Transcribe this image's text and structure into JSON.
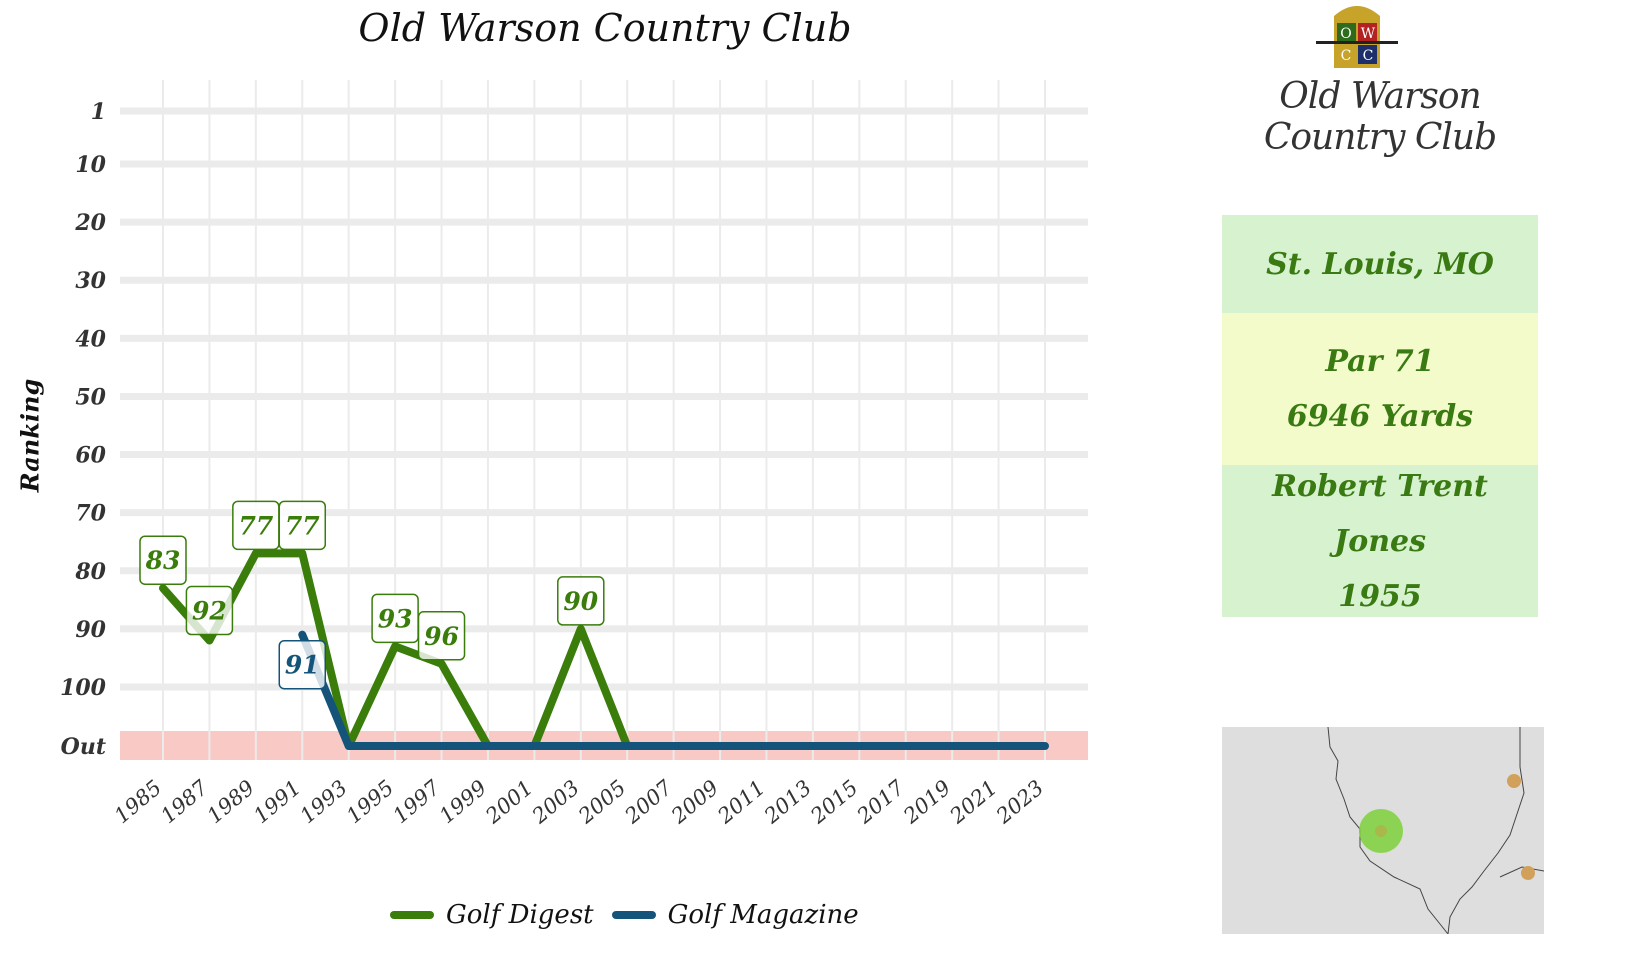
{
  "title": "Old Warson Country Club",
  "logo": {
    "crest_letters": [
      "O",
      "W",
      "C",
      "C"
    ],
    "wordmark": "Old Warson Country Club"
  },
  "info": {
    "location": "St. Louis, MO",
    "par": "Par 71",
    "yards": "6946 Yards",
    "architect": "Robert Trent Jones",
    "year": "1955"
  },
  "chart_data": {
    "type": "line",
    "title": "Old Warson Country Club",
    "xlabel": "",
    "ylabel": "Ranking",
    "y_ticks": [
      "1",
      "10",
      "20",
      "30",
      "40",
      "50",
      "60",
      "70",
      "80",
      "90",
      "100",
      "Out"
    ],
    "x_ticks": [
      1985,
      1987,
      1989,
      1991,
      1993,
      1995,
      1997,
      1999,
      2001,
      2003,
      2005,
      2007,
      2009,
      2011,
      2013,
      2015,
      2017,
      2019,
      2021,
      2023
    ],
    "out_value": 120,
    "out_band_color": "#f9c9c6",
    "grid": true,
    "legend": "bottom",
    "series": [
      {
        "name": "Golf Digest",
        "color": "#3a7d0b",
        "points": [
          {
            "x": 1985,
            "y": 83,
            "label": "83"
          },
          {
            "x": 1987,
            "y": 92,
            "label": "92"
          },
          {
            "x": 1989,
            "y": 77,
            "label": "77"
          },
          {
            "x": 1991,
            "y": 77,
            "label": "77"
          },
          {
            "x": 1993,
            "y": 120
          },
          {
            "x": 1995,
            "y": 93,
            "label": "93"
          },
          {
            "x": 1997,
            "y": 96,
            "label": "96"
          },
          {
            "x": 1999,
            "y": 120
          },
          {
            "x": 2001,
            "y": 120
          },
          {
            "x": 2003,
            "y": 90,
            "label": "90"
          },
          {
            "x": 2005,
            "y": 120
          }
        ]
      },
      {
        "name": "Golf Magazine",
        "color": "#15547a",
        "points": [
          {
            "x": 1991,
            "y": 91,
            "label": "91"
          },
          {
            "x": 1993,
            "y": 120
          },
          {
            "x": 1995,
            "y": 120
          },
          {
            "x": 1997,
            "y": 120
          },
          {
            "x": 1999,
            "y": 120
          },
          {
            "x": 2001,
            "y": 120
          },
          {
            "x": 2003,
            "y": 120
          },
          {
            "x": 2005,
            "y": 120
          },
          {
            "x": 2007,
            "y": 120
          },
          {
            "x": 2009,
            "y": 120
          },
          {
            "x": 2011,
            "y": 120
          },
          {
            "x": 2013,
            "y": 120
          },
          {
            "x": 2015,
            "y": 120
          },
          {
            "x": 2017,
            "y": 120
          },
          {
            "x": 2019,
            "y": 120
          },
          {
            "x": 2021,
            "y": 120
          },
          {
            "x": 2023,
            "y": 120
          }
        ]
      }
    ]
  }
}
